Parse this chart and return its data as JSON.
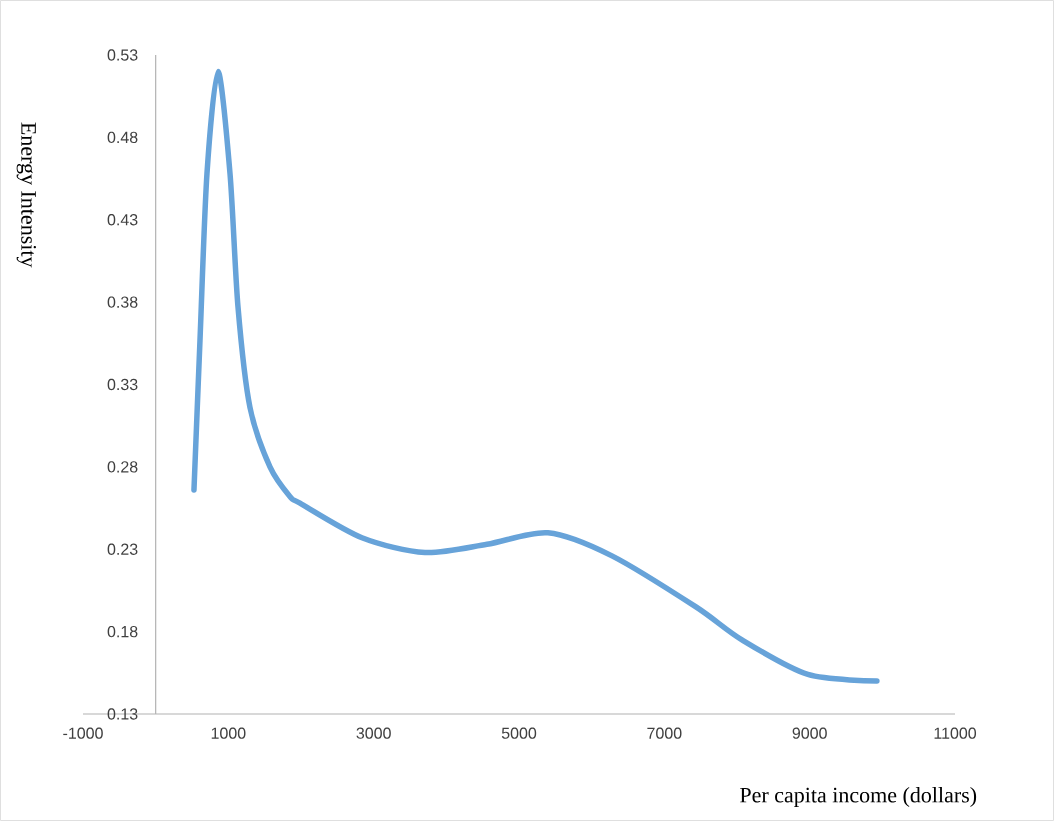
{
  "chart_data": {
    "type": "line",
    "xlabel": "Per capita income (dollars)",
    "ylabel": "Energy Intensity",
    "x": [
      527,
      610,
      706,
      858,
      1023,
      1133,
      1298,
      1573,
      1848,
      1986,
      2839,
      3706,
      4559,
      5398,
      6279,
      7435,
      8068,
      8976,
      9925
    ],
    "series": [
      {
        "color": "#67a3d9",
        "values": [
          0.266,
          0.357,
          0.458,
          0.52,
          0.458,
          0.377,
          0.316,
          0.28,
          0.262,
          0.258,
          0.237,
          0.228,
          0.233,
          0.24,
          0.226,
          0.195,
          0.175,
          0.154,
          0.15
        ]
      }
    ],
    "xlim": [
      -1000,
      11000
    ],
    "ylim": [
      0.13,
      0.53
    ],
    "xticks": [
      -1000,
      1000,
      3000,
      5000,
      7000,
      9000,
      11000
    ],
    "yticks": [
      0.13,
      0.18,
      0.23,
      0.28,
      0.33,
      0.38,
      0.43,
      0.48,
      0.53
    ],
    "marker": "none"
  }
}
